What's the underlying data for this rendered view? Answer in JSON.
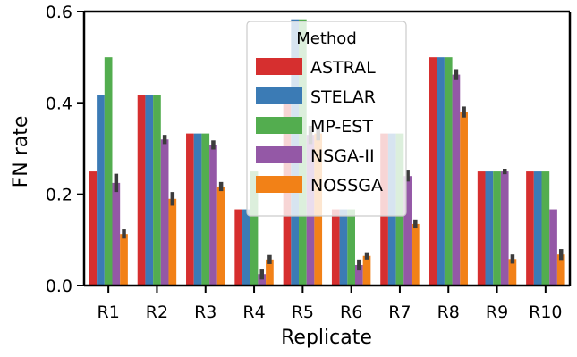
{
  "chart_data": {
    "type": "bar",
    "xlabel": "Replicate",
    "ylabel": "FN rate",
    "ylim": [
      0,
      0.6
    ],
    "yticks": [
      "0.0",
      "0.2",
      "0.4",
      "0.6"
    ],
    "categories": [
      "R1",
      "R2",
      "R3",
      "R4",
      "R5",
      "R6",
      "R7",
      "R8",
      "R9",
      "R10"
    ],
    "legend": {
      "title": "Method",
      "placement": "upper-center"
    },
    "series": [
      {
        "name": "ASTRAL",
        "color": "#d62f2f",
        "values": [
          0.25,
          0.417,
          0.333,
          0.167,
          0.42,
          0.167,
          0.333,
          0.5,
          0.25,
          0.25
        ]
      },
      {
        "name": "STELAR",
        "color": "#3b7bb5",
        "values": [
          0.417,
          0.417,
          0.333,
          0.167,
          0.583,
          0.167,
          0.333,
          0.5,
          0.25,
          0.25
        ]
      },
      {
        "name": "MP-EST",
        "color": "#53ad4f",
        "values": [
          0.5,
          0.417,
          0.333,
          0.25,
          0.583,
          0.167,
          0.333,
          0.5,
          0.25,
          0.25
        ]
      },
      {
        "name": "NSGA-II",
        "color": "#9458a6",
        "values": [
          0.225,
          0.32,
          0.308,
          0.025,
          0.33,
          0.045,
          0.24,
          0.462,
          0.25,
          0.167
        ],
        "errors": [
          0.02,
          0.01,
          0.01,
          0.012,
          0.02,
          0.012,
          0.012,
          0.012,
          0.006,
          0
        ]
      },
      {
        "name": "NOSSGA",
        "color": "#f28117",
        "values": [
          0.113,
          0.19,
          0.217,
          0.057,
          0.333,
          0.065,
          0.135,
          0.38,
          0.058,
          0.068
        ],
        "errors": [
          0.01,
          0.015,
          0.01,
          0.01,
          0.015,
          0.008,
          0.01,
          0.012,
          0.01,
          0.012
        ]
      }
    ]
  }
}
